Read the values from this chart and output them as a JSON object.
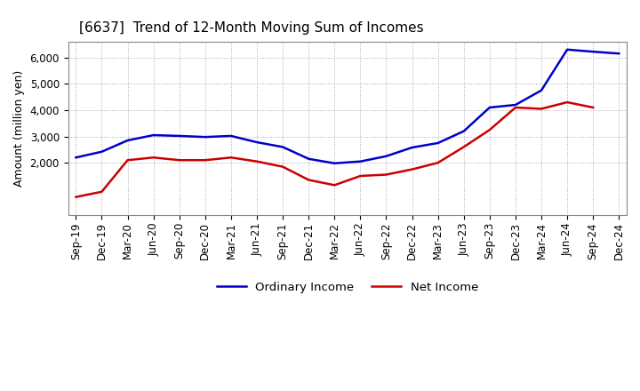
{
  "title": "[6637]  Trend of 12-Month Moving Sum of Incomes",
  "ylabel": "Amount (million yen)",
  "x_labels": [
    "Sep-19",
    "Dec-19",
    "Mar-20",
    "Jun-20",
    "Sep-20",
    "Dec-20",
    "Mar-21",
    "Jun-21",
    "Sep-21",
    "Dec-21",
    "Mar-22",
    "Jun-22",
    "Sep-22",
    "Dec-22",
    "Mar-23",
    "Jun-23",
    "Sep-23",
    "Dec-23",
    "Mar-24",
    "Jun-24",
    "Sep-24",
    "Dec-24"
  ],
  "ordinary_income": [
    2200,
    2420,
    2850,
    3050,
    3020,
    2980,
    3020,
    2780,
    2600,
    2150,
    1980,
    2050,
    2250,
    2580,
    2750,
    3200,
    4100,
    4200,
    4750,
    6300,
    6220,
    6150
  ],
  "net_income": [
    700,
    900,
    2100,
    2200,
    2100,
    2100,
    2200,
    2050,
    1850,
    1350,
    1150,
    1500,
    1550,
    1750,
    2000,
    2600,
    3250,
    4100,
    4050,
    4300,
    4100,
    null
  ],
  "ordinary_color": "#0000cc",
  "net_color": "#cc0000",
  "background_color": "#ffffff",
  "grid_color": "#999999",
  "ylim_min": 0,
  "ylim_max": 6600,
  "ytick_vals": [
    2000,
    3000,
    4000,
    5000,
    6000
  ],
  "legend_ordinary": "Ordinary Income",
  "legend_net": "Net Income",
  "title_fontsize": 11,
  "label_fontsize": 9,
  "tick_fontsize": 8.5
}
